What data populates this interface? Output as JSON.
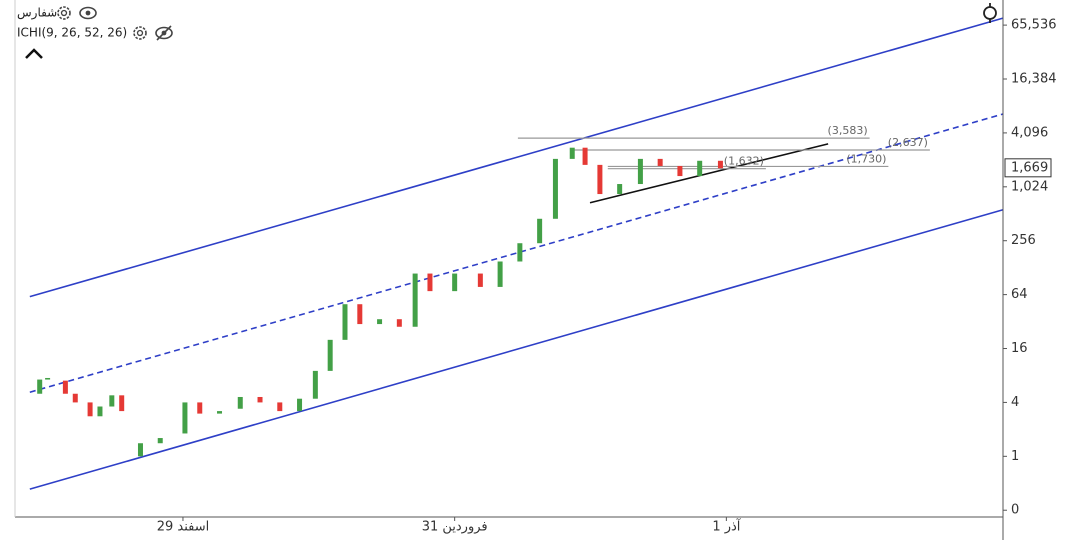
{
  "chart_data": {
    "type": "candlestick",
    "symbol": "شفارس",
    "indicator": "ICHI(9, 26, 52, 26)",
    "log_scale": true,
    "up_color": "#43a047",
    "down_color": "#e53935",
    "xlim": [
      0,
      100
    ],
    "ylim": [
      0.21,
      125000
    ],
    "xticks": [
      {
        "value": 17,
        "label": "29 اسفند"
      },
      {
        "value": 44.5,
        "label": "31 فروردین"
      },
      {
        "value": 72,
        "label": "1 آذر"
      }
    ],
    "yticks": [
      {
        "value": 0.25,
        "label": "0"
      },
      1,
      4,
      16,
      64,
      256,
      {
        "value": 1024,
        "label": "1,024"
      },
      {
        "value": 4096,
        "label": "4,096"
      },
      {
        "value": 16384,
        "label": "16,384"
      },
      {
        "value": 65536,
        "label": "65,536"
      }
    ],
    "x": [
      2.5,
      3.3,
      5.1,
      6.1,
      7.6,
      8.6,
      9.8,
      10.8,
      12.7,
      14.7,
      17.2,
      18.7,
      20.7,
      22.8,
      24.8,
      26.8,
      28.8,
      30.4,
      31.9,
      33.4,
      34.9,
      36.9,
      38.9,
      40.5,
      42,
      44.5,
      47.1,
      49.1,
      51.1,
      53.1,
      54.7,
      56.4,
      57.7,
      59.2,
      61.2,
      63.3,
      65.3,
      67.3,
      69.3,
      71.4
    ],
    "open": [
      5,
      7.2,
      7,
      5,
      4,
      2.8,
      3.6,
      4.8,
      1,
      1.4,
      1.8,
      4,
      3,
      3.4,
      4.6,
      4,
      3.2,
      4.4,
      9,
      20,
      50,
      30,
      34,
      28,
      110,
      70,
      110,
      78,
      150,
      240,
      450,
      2100,
      2800,
      1800,
      850,
      1100,
      2100,
      1750,
      1350,
      2000
    ],
    "close": [
      7.2,
      7.5,
      5,
      4,
      2.8,
      3.6,
      4.8,
      3.2,
      1.4,
      1.6,
      4,
      3,
      3.2,
      4.6,
      4,
      3.2,
      4.4,
      9,
      20,
      50,
      30,
      34,
      28,
      110,
      70,
      110,
      78,
      150,
      240,
      450,
      2100,
      2800,
      1800,
      850,
      1100,
      2100,
      1750,
      1350,
      2000,
      1650
    ],
    "trend_lines": [
      {
        "color": "#2e3fc7",
        "dashed": false,
        "x": [
          1.5,
          100
        ],
        "y": [
          60.8,
          78400
        ]
      },
      {
        "color": "#2e3fc7",
        "dashed": true,
        "x": [
          1.5,
          100
        ],
        "y": [
          5.2,
          6660
        ]
      },
      {
        "color": "#2e3fc7",
        "dashed": false,
        "x": [
          1.5,
          100
        ],
        "y": [
          0.43,
          568
        ]
      },
      {
        "color": "#111111",
        "dashed": false,
        "x": [
          58.2,
          82.3
        ],
        "y": [
          680,
          3090
        ]
      }
    ],
    "levels": [
      {
        "value": 3583,
        "label": "(3,583)",
        "x": [
          50.9,
          86.5
        ]
      },
      {
        "value": 2637,
        "label": "(2,637)",
        "x": [
          56.2,
          92.6
        ]
      },
      {
        "value": 1730,
        "label": "(1,730)",
        "x": [
          60,
          88.4
        ]
      },
      {
        "value": 1632,
        "label": "(1,632)",
        "x": [
          60,
          76
        ]
      }
    ],
    "last_price": {
      "value": 1669,
      "label": "1,669"
    }
  }
}
